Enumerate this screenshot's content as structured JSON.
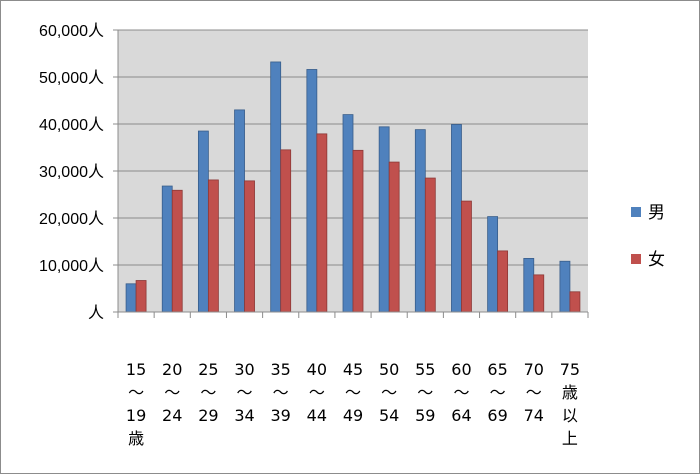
{
  "chart_data": {
    "type": "bar",
    "title": "",
    "xlabel": "",
    "ylabel": "",
    "ylim": [
      0,
      60000
    ],
    "y_ticks": [
      "人",
      "10,000人",
      "20,000人",
      "30,000人",
      "40,000人",
      "50,000人",
      "60,000人"
    ],
    "categories": [
      [
        "15",
        "～",
        "19",
        "歳"
      ],
      [
        "20",
        "～",
        "24"
      ],
      [
        "25",
        "～",
        "29"
      ],
      [
        "30",
        "～",
        "34"
      ],
      [
        "35",
        "～",
        "39"
      ],
      [
        "40",
        "～",
        "44"
      ],
      [
        "45",
        "～",
        "49"
      ],
      [
        "50",
        "～",
        "54"
      ],
      [
        "55",
        "～",
        "59"
      ],
      [
        "60",
        "～",
        "64"
      ],
      [
        "65",
        "～",
        "69"
      ],
      [
        "70",
        "～",
        "74"
      ],
      [
        "75",
        "歳",
        "以",
        "上"
      ]
    ],
    "series": [
      {
        "name": "男",
        "color": "#4f81bd",
        "values": [
          6000,
          26800,
          38500,
          43000,
          53200,
          51600,
          42000,
          39400,
          38800,
          39900,
          20300,
          11400,
          10800
        ]
      },
      {
        "name": "女",
        "color": "#c0504d",
        "values": [
          6700,
          25900,
          28100,
          27900,
          34500,
          37900,
          34400,
          31900,
          28500,
          23600,
          13000,
          7900,
          4300
        ]
      }
    ],
    "grid": true,
    "legend_position": "right",
    "plot_background": "#d9d9d9"
  }
}
